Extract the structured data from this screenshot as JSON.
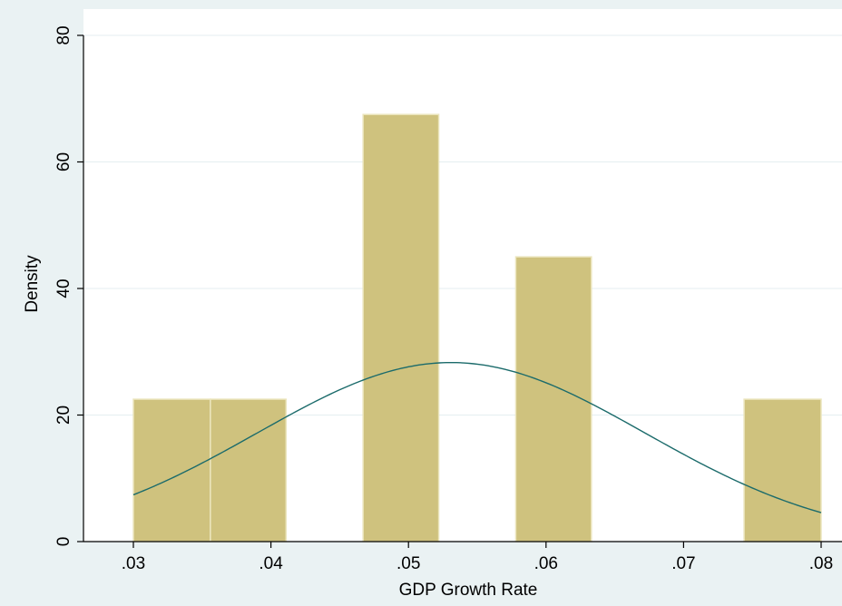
{
  "chart_data": {
    "type": "bar",
    "subtype": "histogram-with-normal-density",
    "title": "",
    "xlabel": "GDP Growth Rate",
    "ylabel": "Density",
    "xlim": [
      0.03,
      0.08
    ],
    "ylim": [
      0,
      80
    ],
    "x_ticks": [
      ".03",
      ".04",
      ".05",
      ".06",
      ".07",
      ".08"
    ],
    "y_ticks": [
      "0",
      "20",
      "40",
      "60",
      "80"
    ],
    "grid": true,
    "legend": "none",
    "bins": [
      {
        "start": 0.03,
        "end": 0.0356,
        "density": 22.5
      },
      {
        "start": 0.0356,
        "end": 0.0411,
        "density": 22.5
      },
      {
        "start": 0.0467,
        "end": 0.0522,
        "density": 67.5
      },
      {
        "start": 0.0578,
        "end": 0.0633,
        "density": 45.0
      },
      {
        "start": 0.0744,
        "end": 0.08,
        "density": 22.5
      }
    ],
    "density_curve": {
      "type": "normal",
      "mean": 0.0531,
      "sd": 0.0141
    },
    "colors": {
      "background": "#eaf2f3",
      "plot_background": "#ffffff",
      "bar": "#cfc27e",
      "bar_edge": "#ebe5bd",
      "curve": "#1b6b6b",
      "grid": "#e4eef0",
      "axis": "#000000"
    }
  }
}
